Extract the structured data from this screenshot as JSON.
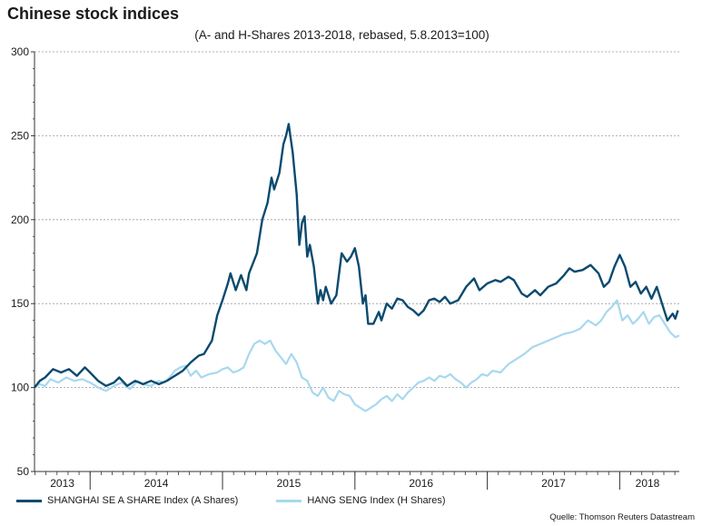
{
  "title": "Chinese stock indices",
  "subtitle": "(A- and H-Shares 2013-2018, rebased, 5.8.2013=100)",
  "source": "Quelle: Thomson Reuters Datastream",
  "colors": {
    "a_shares": "#0b4a6f",
    "h_shares": "#a8d8ef",
    "grid": "#999999",
    "axis": "#333333"
  },
  "chart_data": {
    "type": "line",
    "title": "Chinese stock indices",
    "subtitle": "(A- and H-Shares 2013-2018, rebased, 5.8.2013=100)",
    "ylim": [
      50,
      300
    ],
    "yticks": [
      50,
      100,
      150,
      200,
      250,
      300
    ],
    "xlim": [
      2013.58,
      2018.45
    ],
    "xtick_labels": [
      {
        "label": "2013",
        "x": 2013.79
      },
      {
        "label": "2014",
        "x": 2014.5
      },
      {
        "label": "2015",
        "x": 2015.5
      },
      {
        "label": "2016",
        "x": 2016.5
      },
      {
        "label": "2017",
        "x": 2017.5
      },
      {
        "label": "2018",
        "x": 2018.21
      }
    ],
    "year_boundaries": [
      2014,
      2015,
      2016,
      2017,
      2018
    ],
    "grid": "horizontal dotted",
    "legend_position": "bottom",
    "series": [
      {
        "name": "SHANGHAI SE A SHARE Index (A Shares)",
        "points": [
          [
            2013.58,
            100
          ],
          [
            2013.62,
            104
          ],
          [
            2013.66,
            106
          ],
          [
            2013.72,
            111
          ],
          [
            2013.78,
            109
          ],
          [
            2013.84,
            111
          ],
          [
            2013.9,
            107
          ],
          [
            2013.96,
            112
          ],
          [
            2014.0,
            109
          ],
          [
            2014.06,
            104
          ],
          [
            2014.12,
            101
          ],
          [
            2014.18,
            103
          ],
          [
            2014.22,
            106
          ],
          [
            2014.28,
            101
          ],
          [
            2014.34,
            104
          ],
          [
            2014.4,
            102
          ],
          [
            2014.46,
            104
          ],
          [
            2014.52,
            102
          ],
          [
            2014.58,
            104
          ],
          [
            2014.62,
            106
          ],
          [
            2014.66,
            108
          ],
          [
            2014.7,
            110
          ],
          [
            2014.76,
            115
          ],
          [
            2014.82,
            119
          ],
          [
            2014.86,
            120
          ],
          [
            2014.92,
            128
          ],
          [
            2014.96,
            143
          ],
          [
            2015.0,
            152
          ],
          [
            2015.04,
            162
          ],
          [
            2015.06,
            168
          ],
          [
            2015.1,
            158
          ],
          [
            2015.14,
            167
          ],
          [
            2015.18,
            158
          ],
          [
            2015.2,
            168
          ],
          [
            2015.26,
            180
          ],
          [
            2015.3,
            200
          ],
          [
            2015.34,
            210
          ],
          [
            2015.37,
            225
          ],
          [
            2015.39,
            218
          ],
          [
            2015.43,
            228
          ],
          [
            2015.46,
            245
          ],
          [
            2015.48,
            250
          ],
          [
            2015.5,
            257
          ],
          [
            2015.53,
            240
          ],
          [
            2015.56,
            215
          ],
          [
            2015.58,
            185
          ],
          [
            2015.6,
            198
          ],
          [
            2015.62,
            202
          ],
          [
            2015.64,
            178
          ],
          [
            2015.66,
            185
          ],
          [
            2015.69,
            172
          ],
          [
            2015.72,
            150
          ],
          [
            2015.74,
            158
          ],
          [
            2015.76,
            152
          ],
          [
            2015.78,
            160
          ],
          [
            2015.82,
            150
          ],
          [
            2015.86,
            155
          ],
          [
            2015.9,
            180
          ],
          [
            2015.94,
            175
          ],
          [
            2015.97,
            178
          ],
          [
            2016.0,
            183
          ],
          [
            2016.03,
            172
          ],
          [
            2016.06,
            150
          ],
          [
            2016.08,
            155
          ],
          [
            2016.1,
            138
          ],
          [
            2016.14,
            138
          ],
          [
            2016.18,
            145
          ],
          [
            2016.2,
            140
          ],
          [
            2016.24,
            150
          ],
          [
            2016.28,
            147
          ],
          [
            2016.32,
            153
          ],
          [
            2016.36,
            152
          ],
          [
            2016.4,
            148
          ],
          [
            2016.44,
            146
          ],
          [
            2016.48,
            143
          ],
          [
            2016.52,
            146
          ],
          [
            2016.56,
            152
          ],
          [
            2016.6,
            153
          ],
          [
            2016.64,
            151
          ],
          [
            2016.68,
            154
          ],
          [
            2016.72,
            150
          ],
          [
            2016.78,
            152
          ],
          [
            2016.84,
            160
          ],
          [
            2016.9,
            165
          ],
          [
            2016.94,
            158
          ],
          [
            2017.0,
            162
          ],
          [
            2017.06,
            164
          ],
          [
            2017.1,
            163
          ],
          [
            2017.16,
            166
          ],
          [
            2017.2,
            164
          ],
          [
            2017.26,
            156
          ],
          [
            2017.3,
            154
          ],
          [
            2017.36,
            158
          ],
          [
            2017.4,
            155
          ],
          [
            2017.46,
            160
          ],
          [
            2017.52,
            162
          ],
          [
            2017.58,
            167
          ],
          [
            2017.62,
            171
          ],
          [
            2017.66,
            169
          ],
          [
            2017.72,
            170
          ],
          [
            2017.78,
            173
          ],
          [
            2017.84,
            168
          ],
          [
            2017.88,
            160
          ],
          [
            2017.92,
            163
          ],
          [
            2017.96,
            172
          ],
          [
            2018.0,
            179
          ],
          [
            2018.04,
            172
          ],
          [
            2018.08,
            160
          ],
          [
            2018.12,
            163
          ],
          [
            2018.16,
            156
          ],
          [
            2018.2,
            160
          ],
          [
            2018.24,
            153
          ],
          [
            2018.28,
            160
          ],
          [
            2018.32,
            150
          ],
          [
            2018.36,
            140
          ],
          [
            2018.4,
            144
          ],
          [
            2018.42,
            141
          ],
          [
            2018.44,
            146
          ]
        ]
      },
      {
        "name": "HANG SENG Index (H Shares)",
        "points": [
          [
            2013.58,
            100
          ],
          [
            2013.62,
            102
          ],
          [
            2013.66,
            101
          ],
          [
            2013.7,
            105
          ],
          [
            2013.76,
            103
          ],
          [
            2013.82,
            106
          ],
          [
            2013.88,
            104
          ],
          [
            2013.94,
            105
          ],
          [
            2014.0,
            103
          ],
          [
            2014.06,
            100
          ],
          [
            2014.12,
            98
          ],
          [
            2014.18,
            101
          ],
          [
            2014.24,
            103
          ],
          [
            2014.3,
            99
          ],
          [
            2014.36,
            104
          ],
          [
            2014.4,
            102
          ],
          [
            2014.46,
            101
          ],
          [
            2014.52,
            104
          ],
          [
            2014.56,
            103
          ],
          [
            2014.6,
            106
          ],
          [
            2014.64,
            110
          ],
          [
            2014.68,
            112
          ],
          [
            2014.72,
            113
          ],
          [
            2014.76,
            107
          ],
          [
            2014.8,
            110
          ],
          [
            2014.84,
            106
          ],
          [
            2014.9,
            108
          ],
          [
            2014.96,
            109
          ],
          [
            2015.0,
            111
          ],
          [
            2015.04,
            112
          ],
          [
            2015.08,
            109
          ],
          [
            2015.12,
            110
          ],
          [
            2015.16,
            112
          ],
          [
            2015.2,
            120
          ],
          [
            2015.24,
            126
          ],
          [
            2015.28,
            128
          ],
          [
            2015.32,
            126
          ],
          [
            2015.36,
            128
          ],
          [
            2015.4,
            122
          ],
          [
            2015.44,
            118
          ],
          [
            2015.48,
            114
          ],
          [
            2015.52,
            120
          ],
          [
            2015.56,
            115
          ],
          [
            2015.6,
            106
          ],
          [
            2015.64,
            104
          ],
          [
            2015.68,
            97
          ],
          [
            2015.72,
            95
          ],
          [
            2015.76,
            100
          ],
          [
            2015.8,
            94
          ],
          [
            2015.84,
            92
          ],
          [
            2015.88,
            98
          ],
          [
            2015.92,
            96
          ],
          [
            2015.96,
            95
          ],
          [
            2016.0,
            90
          ],
          [
            2016.04,
            88
          ],
          [
            2016.08,
            86
          ],
          [
            2016.12,
            88
          ],
          [
            2016.16,
            90
          ],
          [
            2016.2,
            93
          ],
          [
            2016.24,
            95
          ],
          [
            2016.28,
            92
          ],
          [
            2016.32,
            96
          ],
          [
            2016.36,
            93
          ],
          [
            2016.4,
            97
          ],
          [
            2016.44,
            100
          ],
          [
            2016.48,
            103
          ],
          [
            2016.52,
            104
          ],
          [
            2016.56,
            106
          ],
          [
            2016.6,
            104
          ],
          [
            2016.64,
            107
          ],
          [
            2016.68,
            106
          ],
          [
            2016.72,
            108
          ],
          [
            2016.76,
            105
          ],
          [
            2016.8,
            103
          ],
          [
            2016.84,
            100
          ],
          [
            2016.88,
            103
          ],
          [
            2016.92,
            105
          ],
          [
            2016.96,
            108
          ],
          [
            2017.0,
            107
          ],
          [
            2017.04,
            110
          ],
          [
            2017.1,
            109
          ],
          [
            2017.16,
            114
          ],
          [
            2017.22,
            117
          ],
          [
            2017.28,
            120
          ],
          [
            2017.34,
            124
          ],
          [
            2017.4,
            126
          ],
          [
            2017.46,
            128
          ],
          [
            2017.52,
            130
          ],
          [
            2017.58,
            132
          ],
          [
            2017.64,
            133
          ],
          [
            2017.7,
            135
          ],
          [
            2017.76,
            140
          ],
          [
            2017.82,
            137
          ],
          [
            2017.86,
            140
          ],
          [
            2017.9,
            145
          ],
          [
            2017.94,
            148
          ],
          [
            2017.98,
            152
          ],
          [
            2018.02,
            140
          ],
          [
            2018.06,
            143
          ],
          [
            2018.1,
            138
          ],
          [
            2018.14,
            141
          ],
          [
            2018.18,
            145
          ],
          [
            2018.22,
            138
          ],
          [
            2018.26,
            142
          ],
          [
            2018.3,
            143
          ],
          [
            2018.34,
            138
          ],
          [
            2018.38,
            133
          ],
          [
            2018.42,
            130
          ],
          [
            2018.45,
            131
          ]
        ]
      }
    ]
  }
}
